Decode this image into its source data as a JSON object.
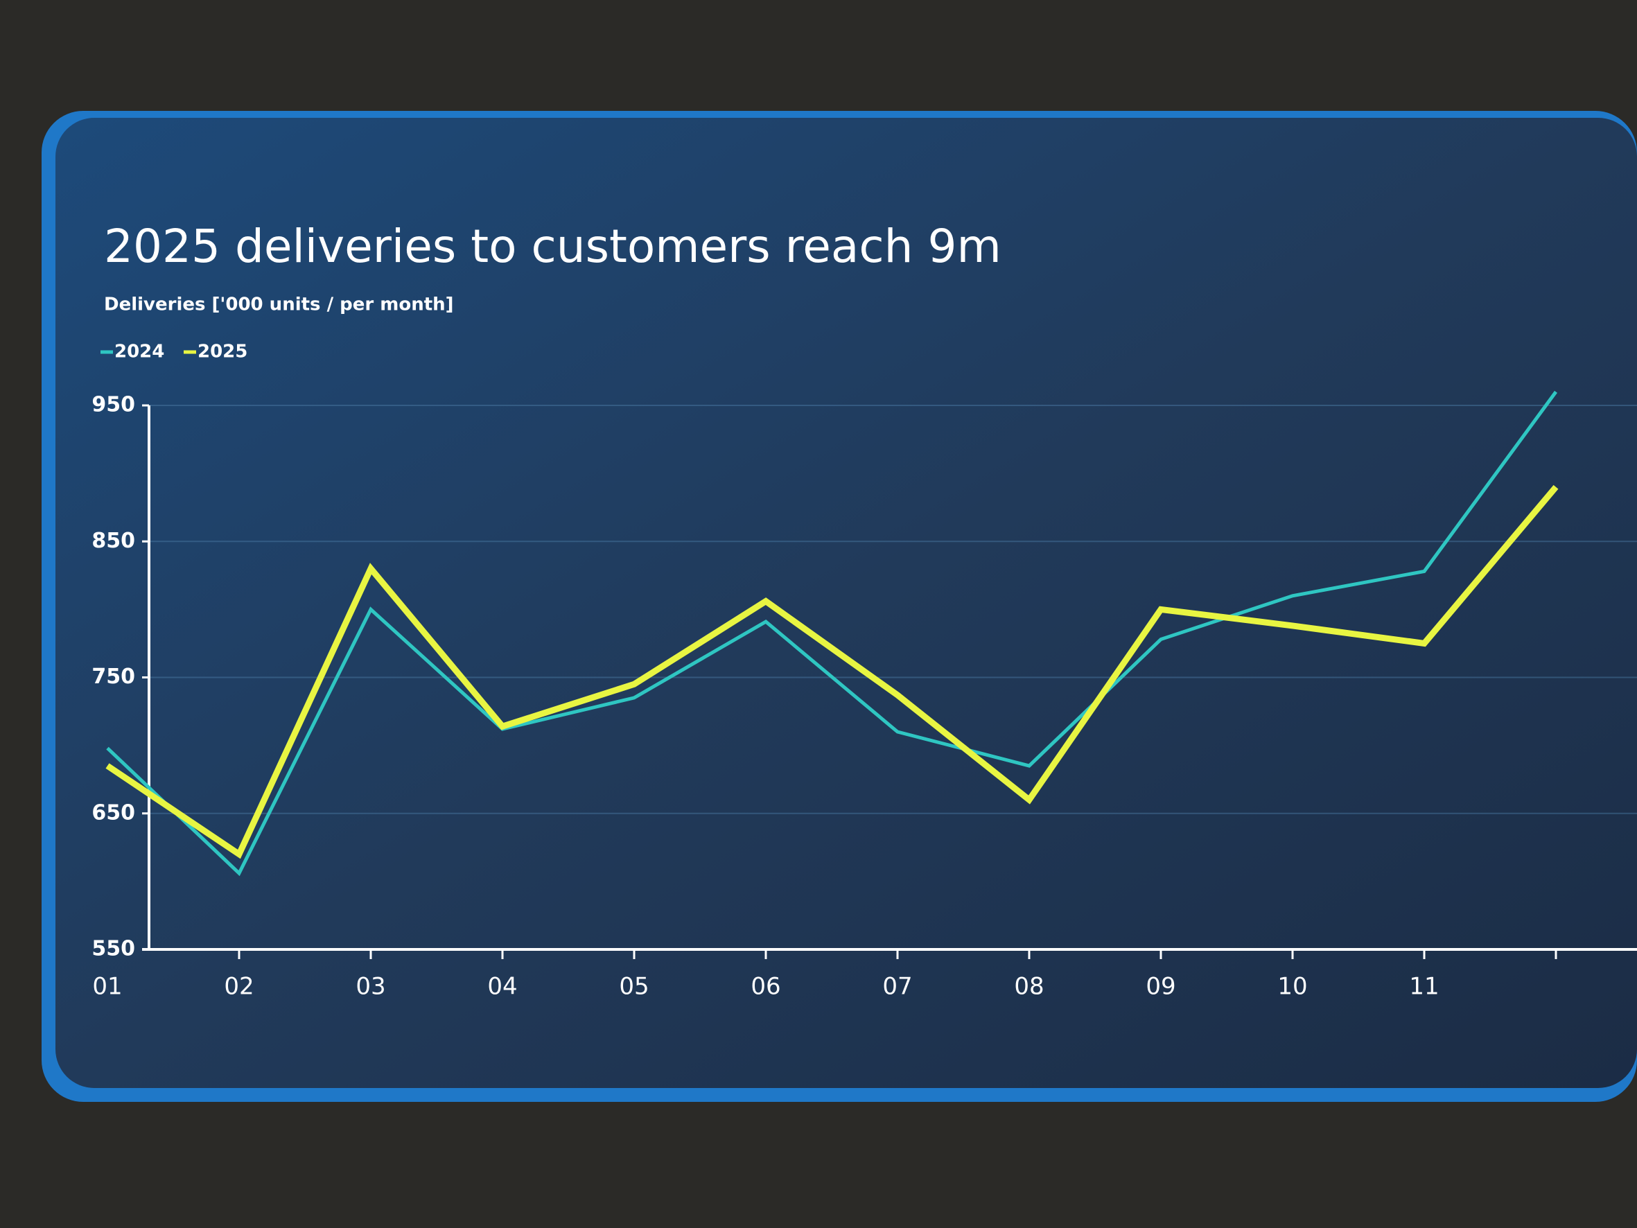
{
  "chart_data": {
    "type": "line",
    "title": "2025 deliveries to customers reach 9m",
    "subtitle": "Deliveries ['000 units / per month]",
    "categories": [
      "01",
      "02",
      "03",
      "04",
      "05",
      "06",
      "07",
      "08",
      "09",
      "10",
      "11",
      null
    ],
    "series": [
      {
        "name": "2024",
        "color": "#2fc6c2",
        "values": [
          698,
          606,
          800,
          712,
          735,
          791,
          710,
          685,
          778,
          810,
          828,
          960
        ]
      },
      {
        "name": "2025",
        "color": "#e8f542",
        "values": [
          685,
          620,
          830,
          714,
          745,
          806,
          737,
          660,
          800,
          788,
          775,
          890
        ]
      }
    ],
    "ylim": [
      550,
      950
    ],
    "yticks": [
      550,
      650,
      750,
      850,
      950
    ],
    "grid": true
  }
}
